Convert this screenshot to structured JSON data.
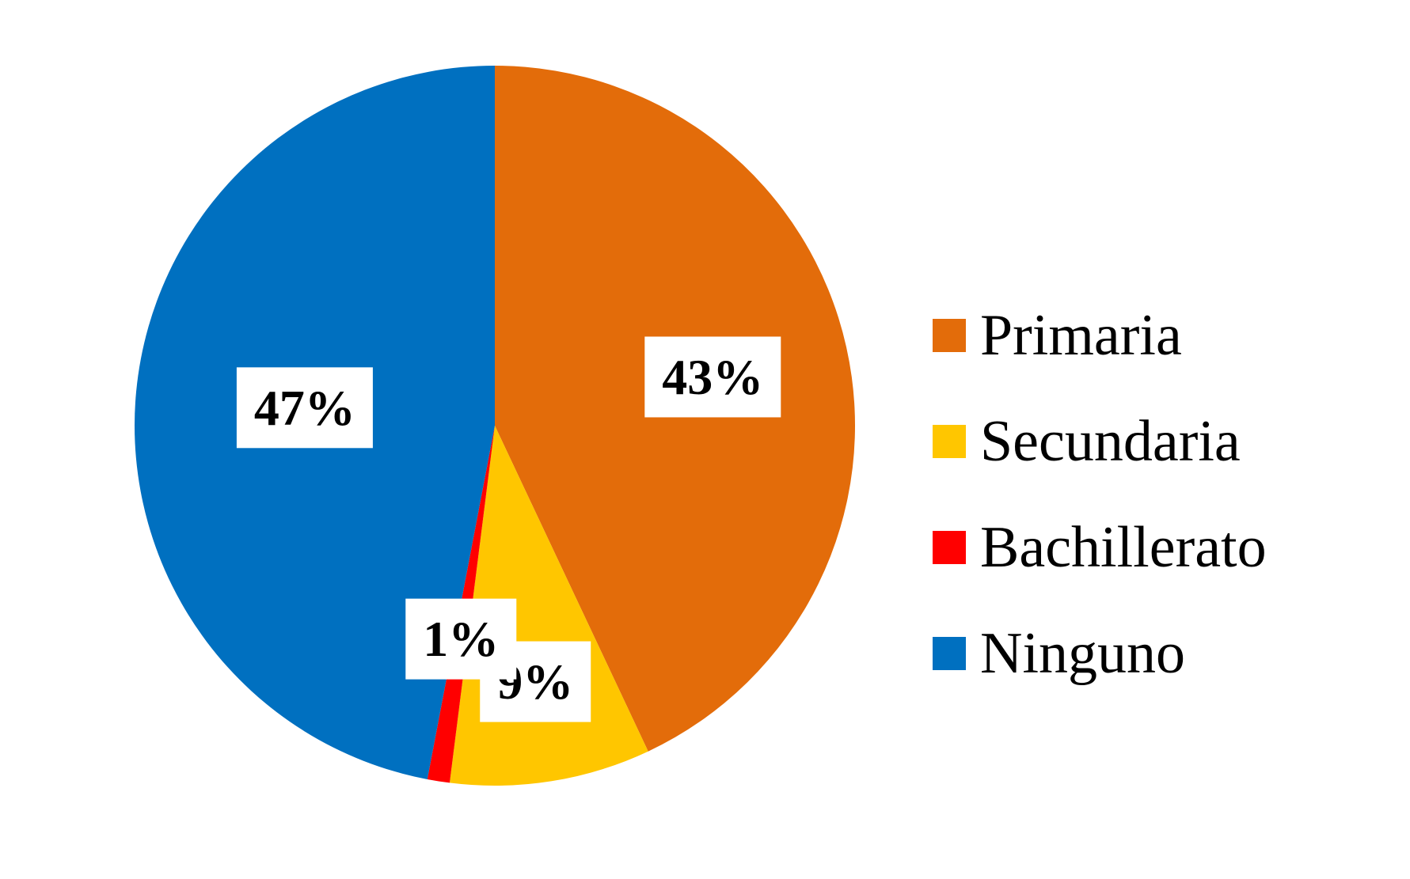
{
  "chart_data": {
    "type": "pie",
    "title": "",
    "start_angle_deg": 0,
    "direction": "clockwise",
    "legend_position": "right",
    "slices": [
      {
        "label": "Primaria",
        "value": 43,
        "display": "43%",
        "color": "#E36C0A"
      },
      {
        "label": "Secundaria",
        "value": 9,
        "display": "9%",
        "color": "#FFC600"
      },
      {
        "label": "Bachillerato",
        "value": 1,
        "display": "1%",
        "color": "#FF0000"
      },
      {
        "label": "Ninguno",
        "value": 47,
        "display": "47%",
        "color": "#0070C0"
      }
    ]
  }
}
